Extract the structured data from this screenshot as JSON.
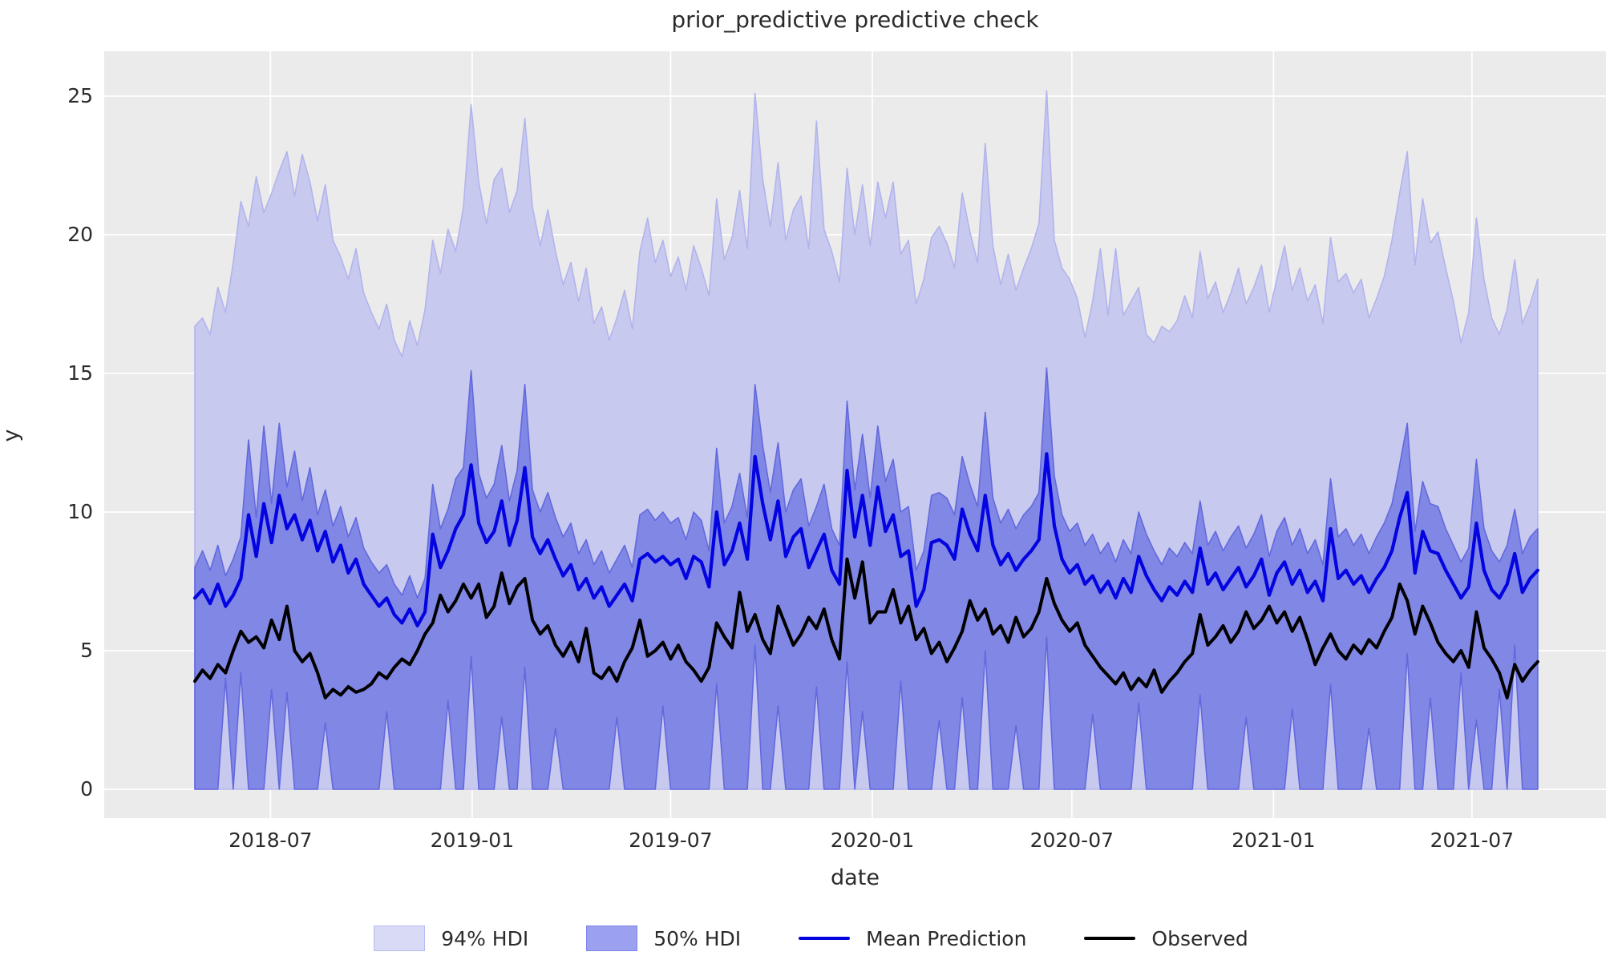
{
  "colors": {
    "figure_bg": "#ffffff",
    "axes_bg": "#ebebeb",
    "grid": "#ffffff",
    "text": "#2b2b2b",
    "hdi94_fill": "#c8c9ef",
    "hdi94_edge": "#b2b4ec",
    "hdi50_fill": "#8187e5",
    "hdi50_edge": "#6269dd",
    "mean_line": "#0404e0",
    "observed_line": "#000000"
  },
  "legend": [
    {
      "label": "94% HDI",
      "swatch": "patch",
      "fill": "#d9daf6",
      "edge": "#b7baf1"
    },
    {
      "label": "50% HDI",
      "swatch": "patch",
      "fill": "#9ba0ef",
      "edge": "#7e84e9"
    },
    {
      "label": "Mean Prediction",
      "swatch": "line",
      "color": "#0404e0"
    },
    {
      "label": "Observed",
      "swatch": "line",
      "color": "#000000"
    }
  ],
  "chart_data": {
    "type": "line",
    "title": "prior_predictive predictive check",
    "xlabel": "date",
    "ylabel": "y",
    "grid": "on",
    "legend_position": "below axes, centered",
    "ylim": [
      -1.0,
      26.6
    ],
    "y_ticks": [
      0,
      5,
      10,
      15,
      20,
      25
    ],
    "x_ticks": [
      {
        "label": "2018-07",
        "day": 69
      },
      {
        "label": "2019-01",
        "day": 253
      },
      {
        "label": "2019-07",
        "day": 434
      },
      {
        "label": "2020-01",
        "day": 618
      },
      {
        "label": "2020-07",
        "day": 800
      },
      {
        "label": "2021-01",
        "day": 984
      },
      {
        "label": "2021-07",
        "day": 1165
      }
    ],
    "x_start": "2018-04-23",
    "x_freq_days": 7,
    "n_points": 176,
    "series": [
      {
        "name": "94% HDI",
        "type": "band",
        "fill": "#c8c9ef",
        "edge": "#b2b4ec",
        "lo": 0,
        "hi": [
          16.7,
          17.0,
          16.4,
          18.1,
          17.2,
          19.0,
          21.2,
          20.3,
          22.1,
          20.8,
          21.5,
          22.3,
          23.0,
          21.4,
          22.9,
          21.9,
          20.5,
          21.8,
          19.8,
          19.2,
          18.4,
          19.5,
          17.9,
          17.2,
          16.6,
          17.5,
          16.2,
          15.6,
          16.9,
          16.0,
          17.3,
          19.8,
          18.6,
          20.2,
          19.4,
          21.0,
          24.7,
          21.9,
          20.4,
          22.0,
          22.4,
          20.8,
          21.6,
          24.2,
          21.0,
          19.6,
          20.9,
          19.4,
          18.2,
          19.0,
          17.6,
          18.8,
          16.8,
          17.4,
          16.2,
          17.0,
          18.0,
          16.6,
          19.4,
          20.6,
          19.0,
          19.8,
          18.5,
          19.2,
          18.0,
          19.6,
          18.8,
          17.8,
          21.3,
          19.1,
          19.9,
          21.6,
          19.5,
          25.1,
          22.0,
          20.3,
          22.6,
          19.8,
          20.9,
          21.4,
          19.5,
          24.1,
          20.2,
          19.4,
          18.3,
          22.4,
          20.0,
          21.8,
          19.6,
          21.9,
          20.6,
          21.9,
          19.3,
          19.8,
          17.5,
          18.4,
          19.9,
          20.3,
          19.7,
          18.8,
          21.5,
          20.1,
          19.0,
          23.3,
          19.6,
          18.2,
          19.3,
          18.0,
          18.8,
          19.5,
          20.4,
          25.2,
          19.8,
          18.8,
          18.4,
          17.7,
          16.3,
          17.6,
          19.5,
          17.1,
          19.5,
          17.1,
          17.6,
          18.1,
          16.4,
          16.1,
          16.7,
          16.5,
          16.9,
          17.8,
          17.0,
          19.4,
          17.7,
          18.3,
          17.2,
          17.9,
          18.8,
          17.5,
          18.1,
          18.9,
          17.2,
          18.4,
          19.6,
          18.0,
          18.8,
          17.6,
          18.2,
          16.8,
          19.9,
          18.3,
          18.6,
          17.9,
          18.4,
          17.0,
          17.7,
          18.5,
          19.8,
          21.5,
          23.0,
          18.9,
          21.3,
          19.7,
          20.1,
          18.8,
          17.6,
          16.1,
          17.2,
          20.6,
          18.4,
          17.0,
          16.4,
          17.3,
          19.1,
          16.8,
          17.5,
          18.4
        ]
      },
      {
        "name": "50% HDI",
        "type": "band",
        "fill": "#8187e5",
        "edge": "#6269dd",
        "lo": [
          0,
          0,
          0,
          0,
          4.0,
          0,
          4.2,
          0,
          0,
          0,
          3.6,
          0,
          3.5,
          0,
          0,
          0,
          0,
          2.4,
          0,
          0,
          0,
          0,
          0,
          0,
          0,
          2.8,
          0,
          0,
          0,
          0,
          0,
          0,
          0,
          3.2,
          0,
          0,
          4.8,
          0,
          0,
          0,
          2.6,
          0,
          0,
          4.4,
          0,
          0,
          0,
          2.2,
          0,
          0,
          0,
          0,
          0,
          0,
          0,
          2.6,
          0,
          0,
          0,
          0,
          0,
          3.0,
          0,
          0,
          0,
          0,
          0,
          0,
          3.8,
          0,
          0,
          0,
          0,
          5.2,
          0,
          0,
          3.0,
          0,
          0,
          0,
          0,
          3.7,
          0,
          0,
          0,
          4.6,
          0,
          2.8,
          0,
          0,
          0,
          0,
          3.9,
          0,
          0,
          0,
          0,
          2.5,
          0,
          0,
          3.3,
          0,
          0,
          5.0,
          0,
          0,
          0,
          2.3,
          0,
          0,
          0,
          5.5,
          0,
          0,
          0,
          0,
          0,
          2.7,
          0,
          0,
          0,
          0,
          0,
          3.1,
          0,
          0,
          0,
          0,
          0,
          0,
          0,
          3.4,
          0,
          0,
          0,
          0,
          0,
          2.6,
          0,
          0,
          0,
          0,
          0,
          2.9,
          0,
          0,
          0,
          0,
          3.8,
          0,
          0,
          0,
          0,
          2.2,
          0,
          0,
          0,
          0,
          4.9,
          0,
          0,
          3.3,
          0,
          0,
          0,
          4.2,
          0,
          2.5,
          0,
          0,
          3.6,
          0,
          5.2,
          0,
          0,
          0
        ],
        "hi": [
          8.0,
          8.6,
          7.9,
          8.8,
          7.7,
          8.3,
          9.1,
          12.6,
          9.8,
          13.1,
          10.3,
          13.2,
          10.9,
          12.2,
          10.4,
          11.6,
          9.9,
          10.8,
          9.5,
          10.2,
          9.1,
          9.8,
          8.7,
          8.2,
          7.8,
          8.1,
          7.4,
          7.0,
          7.7,
          6.9,
          7.6,
          11.0,
          9.4,
          10.1,
          11.2,
          11.6,
          15.1,
          11.4,
          10.5,
          11.0,
          12.4,
          10.4,
          11.5,
          14.6,
          10.8,
          10.0,
          10.7,
          9.8,
          9.1,
          9.6,
          8.5,
          9.0,
          8.1,
          8.6,
          7.8,
          8.3,
          8.8,
          8.0,
          9.9,
          10.1,
          9.7,
          10.0,
          9.6,
          9.8,
          9.0,
          10.0,
          9.7,
          8.6,
          12.3,
          9.6,
          10.2,
          11.4,
          9.8,
          14.6,
          12.4,
          10.7,
          12.5,
          10.0,
          10.8,
          11.2,
          9.5,
          10.2,
          11.0,
          9.4,
          8.8,
          14.0,
          10.8,
          12.8,
          10.5,
          13.1,
          11.1,
          11.9,
          10.0,
          10.2,
          7.9,
          8.6,
          10.6,
          10.7,
          10.5,
          9.9,
          12.0,
          11.0,
          10.2,
          13.6,
          10.5,
          9.6,
          10.1,
          9.4,
          9.9,
          10.2,
          10.7,
          15.2,
          11.3,
          9.9,
          9.3,
          9.6,
          8.8,
          9.2,
          8.5,
          8.9,
          8.2,
          9.0,
          8.5,
          10.0,
          9.2,
          8.6,
          8.1,
          8.7,
          8.4,
          8.9,
          8.5,
          10.4,
          8.8,
          9.3,
          8.6,
          9.1,
          9.5,
          8.7,
          9.2,
          9.9,
          8.4,
          9.3,
          9.8,
          8.8,
          9.4,
          8.5,
          9.0,
          8.1,
          11.2,
          9.1,
          9.4,
          8.8,
          9.2,
          8.5,
          9.1,
          9.6,
          10.3,
          11.7,
          13.2,
          9.3,
          11.1,
          10.3,
          10.2,
          9.4,
          8.8,
          8.2,
          8.7,
          11.9,
          9.4,
          8.6,
          8.2,
          8.8,
          10.1,
          8.5,
          9.1,
          9.4
        ]
      },
      {
        "name": "Mean Prediction",
        "type": "line",
        "color": "#0404e0",
        "width": 4.2,
        "values": [
          6.9,
          7.2,
          6.7,
          7.4,
          6.6,
          7.0,
          7.6,
          9.9,
          8.4,
          10.3,
          8.9,
          10.6,
          9.4,
          9.9,
          9.0,
          9.7,
          8.6,
          9.3,
          8.2,
          8.8,
          7.8,
          8.3,
          7.4,
          7.0,
          6.6,
          6.9,
          6.3,
          6.0,
          6.5,
          5.9,
          6.4,
          9.2,
          8.0,
          8.6,
          9.4,
          9.9,
          11.7,
          9.6,
          8.9,
          9.3,
          10.4,
          8.8,
          9.7,
          11.6,
          9.1,
          8.5,
          9.0,
          8.3,
          7.7,
          8.1,
          7.2,
          7.6,
          6.9,
          7.3,
          6.6,
          7.0,
          7.4,
          6.8,
          8.3,
          8.5,
          8.2,
          8.4,
          8.1,
          8.3,
          7.6,
          8.4,
          8.2,
          7.3,
          10.0,
          8.1,
          8.6,
          9.6,
          8.3,
          12.0,
          10.3,
          9.0,
          10.4,
          8.4,
          9.1,
          9.4,
          8.0,
          8.6,
          9.2,
          7.9,
          7.4,
          11.5,
          9.1,
          10.6,
          8.8,
          10.9,
          9.3,
          9.9,
          8.4,
          8.6,
          6.6,
          7.2,
          8.9,
          9.0,
          8.8,
          8.3,
          10.1,
          9.2,
          8.6,
          10.6,
          8.8,
          8.1,
          8.5,
          7.9,
          8.3,
          8.6,
          9.0,
          12.1,
          9.5,
          8.3,
          7.8,
          8.1,
          7.4,
          7.7,
          7.1,
          7.5,
          6.9,
          7.6,
          7.1,
          8.4,
          7.7,
          7.2,
          6.8,
          7.3,
          7.0,
          7.5,
          7.1,
          8.7,
          7.4,
          7.8,
          7.2,
          7.6,
          8.0,
          7.3,
          7.7,
          8.3,
          7.0,
          7.8,
          8.2,
          7.4,
          7.9,
          7.1,
          7.5,
          6.8,
          9.4,
          7.6,
          7.9,
          7.4,
          7.7,
          7.1,
          7.6,
          8.0,
          8.6,
          9.8,
          10.7,
          7.8,
          9.3,
          8.6,
          8.5,
          7.9,
          7.4,
          6.9,
          7.3,
          9.6,
          7.9,
          7.2,
          6.9,
          7.4,
          8.5,
          7.1,
          7.6,
          7.9
        ]
      },
      {
        "name": "Observed",
        "type": "line",
        "color": "#000000",
        "width": 4.0,
        "values": [
          3.9,
          4.3,
          4.0,
          4.5,
          4.2,
          5.0,
          5.7,
          5.3,
          5.5,
          5.1,
          6.1,
          5.4,
          6.6,
          5.0,
          4.6,
          4.9,
          4.2,
          3.3,
          3.6,
          3.4,
          3.7,
          3.5,
          3.6,
          3.8,
          4.2,
          4.0,
          4.4,
          4.7,
          4.5,
          5.0,
          5.6,
          6.0,
          7.0,
          6.4,
          6.8,
          7.4,
          6.9,
          7.4,
          6.2,
          6.6,
          7.8,
          6.7,
          7.3,
          7.6,
          6.1,
          5.6,
          5.9,
          5.2,
          4.8,
          5.3,
          4.6,
          5.8,
          4.2,
          4.0,
          4.4,
          3.9,
          4.6,
          5.1,
          6.1,
          4.8,
          5.0,
          5.3,
          4.7,
          5.2,
          4.6,
          4.3,
          3.9,
          4.4,
          6.0,
          5.5,
          5.1,
          7.1,
          5.7,
          6.3,
          5.4,
          4.9,
          6.6,
          5.9,
          5.2,
          5.6,
          6.2,
          5.8,
          6.5,
          5.4,
          4.7,
          8.3,
          6.9,
          8.2,
          6.0,
          6.4,
          6.4,
          7.2,
          6.0,
          6.6,
          5.4,
          5.8,
          4.9,
          5.3,
          4.6,
          5.1,
          5.7,
          6.8,
          6.1,
          6.5,
          5.6,
          5.9,
          5.3,
          6.2,
          5.5,
          5.8,
          6.4,
          7.6,
          6.7,
          6.1,
          5.7,
          6.0,
          5.2,
          4.8,
          4.4,
          4.1,
          3.8,
          4.2,
          3.6,
          4.0,
          3.7,
          4.3,
          3.5,
          3.9,
          4.2,
          4.6,
          4.9,
          6.3,
          5.2,
          5.5,
          5.9,
          5.3,
          5.7,
          6.4,
          5.8,
          6.1,
          6.6,
          6.0,
          6.4,
          5.7,
          6.2,
          5.4,
          4.5,
          5.1,
          5.6,
          5.0,
          4.7,
          5.2,
          4.9,
          5.4,
          5.1,
          5.7,
          6.2,
          7.4,
          6.8,
          5.6,
          6.6,
          6.0,
          5.3,
          4.9,
          4.6,
          5.0,
          4.4,
          6.4,
          5.1,
          4.7,
          4.2,
          3.3,
          4.5,
          3.9,
          4.3,
          4.6
        ]
      }
    ]
  }
}
